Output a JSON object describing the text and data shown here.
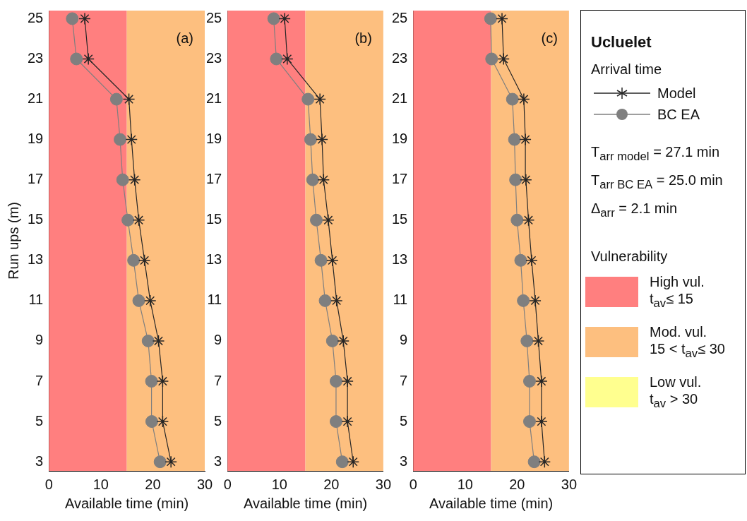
{
  "chart_data": [
    {
      "type": "line",
      "legend_title": "Arrival time",
      "xlabel": "Available time (min)",
      "ylabel": "Run ups (m)",
      "xlim": [
        0,
        30
      ],
      "xticks": [
        0,
        10,
        20,
        30
      ],
      "ylim": [
        2.55,
        25.4
      ],
      "yticks": [
        3,
        5,
        7,
        9,
        11,
        13,
        15,
        17,
        19,
        21,
        23,
        25
      ],
      "grid": false,
      "legend": "right",
      "annotations": [
        "(a)",
        "Ucluelet",
        "T$_{arr model}$ = 27.1 min",
        "T$_{arr BC EA}$ = 25.0 min",
        "Δ$_{arr}$ = 2.1 min",
        "Vulnerability",
        "High vul.\nt$_{av}$≤ 15",
        "Mod. vul.\n15 < t$_{av}$≤ 30",
        "Low vul.\nt$_{av}$ > 30"
      ],
      "bands": [
        {
          "axis": "x",
          "from": 0,
          "to": 15,
          "color": "#ff7f7f"
        },
        {
          "axis": "x",
          "from": 15,
          "to": 30,
          "color": "#fdbf7f"
        }
      ],
      "series": [
        {
          "name": "Model",
          "color": "#262626",
          "marker": "cross",
          "x": [
            23.5,
            21.9,
            21.9,
            21.1,
            19.5,
            18.4,
            17.3,
            16.5,
            15.9,
            15.4,
            7.6,
            6.9
          ],
          "values": [
            3,
            5,
            7,
            9,
            11,
            13,
            15,
            17,
            19,
            21,
            23,
            25
          ]
        },
        {
          "name": "BC EA",
          "color": "#7f7f7f",
          "marker": "circle",
          "x": [
            21.4,
            19.8,
            19.75,
            19.1,
            17.3,
            16.3,
            15.2,
            14.2,
            13.7,
            13.0,
            5.3,
            4.5
          ],
          "values": [
            3,
            5,
            7,
            9,
            11,
            13,
            15,
            17,
            19,
            21,
            23,
            25
          ]
        }
      ]
    },
    {
      "type": "line",
      "xlabel": "Available time (min)",
      "xlim": [
        0,
        30
      ],
      "xticks": [
        0,
        10,
        20,
        30
      ],
      "ylim": [
        2.55,
        25.4
      ],
      "yticks": [
        3,
        5,
        7,
        9,
        11,
        13,
        15,
        17,
        19,
        21,
        23,
        25
      ],
      "grid": false,
      "annotations": [
        "(b)"
      ],
      "bands": [
        {
          "axis": "x",
          "from": 0,
          "to": 15,
          "color": "#ff7f7f"
        },
        {
          "axis": "x",
          "from": 15,
          "to": 30,
          "color": "#fdbf7f"
        }
      ],
      "series": [
        {
          "color": "#262626",
          "marker": "cross",
          "x": [
            24.2,
            23.1,
            23.1,
            22.3,
            21.0,
            20.2,
            19.4,
            18.5,
            18.2,
            17.8,
            11.5,
            11.0
          ],
          "values": [
            3,
            5,
            7,
            9,
            11,
            13,
            15,
            17,
            19,
            21,
            23,
            25
          ]
        },
        {
          "color": "#7f7f7f",
          "marker": "circle",
          "x": [
            22.1,
            20.9,
            20.9,
            20.2,
            18.8,
            18.0,
            17.1,
            16.4,
            16.0,
            15.5,
            9.4,
            8.9
          ],
          "values": [
            3,
            5,
            7,
            9,
            11,
            13,
            15,
            17,
            19,
            21,
            23,
            25
          ]
        }
      ]
    },
    {
      "type": "line",
      "xlabel": "Available time (min)",
      "xlim": [
        0,
        30
      ],
      "xticks": [
        0,
        10,
        20,
        30
      ],
      "ylim": [
        2.55,
        25.4
      ],
      "yticks": [
        3,
        5,
        7,
        9,
        11,
        13,
        15,
        17,
        19,
        21,
        23,
        25
      ],
      "grid": false,
      "annotations": [
        "(c)"
      ],
      "bands": [
        {
          "axis": "x",
          "from": 0,
          "to": 15,
          "color": "#ff7f7f"
        },
        {
          "axis": "x",
          "from": 15,
          "to": 30,
          "color": "#fdbf7f"
        }
      ],
      "series": [
        {
          "color": "#262626",
          "marker": "cross",
          "x": [
            25.3,
            24.7,
            24.7,
            24.1,
            23.5,
            22.8,
            22.2,
            21.7,
            21.6,
            21.3,
            17.4,
            17.1
          ],
          "values": [
            3,
            5,
            7,
            9,
            11,
            13,
            15,
            17,
            19,
            21,
            23,
            25
          ]
        },
        {
          "color": "#7f7f7f",
          "marker": "circle",
          "x": [
            23.3,
            22.4,
            22.4,
            21.9,
            21.2,
            20.7,
            20.0,
            19.7,
            19.5,
            19.1,
            15.1,
            14.9
          ],
          "values": [
            3,
            5,
            7,
            9,
            11,
            13,
            15,
            17,
            19,
            21,
            23,
            25
          ]
        }
      ]
    }
  ]
}
